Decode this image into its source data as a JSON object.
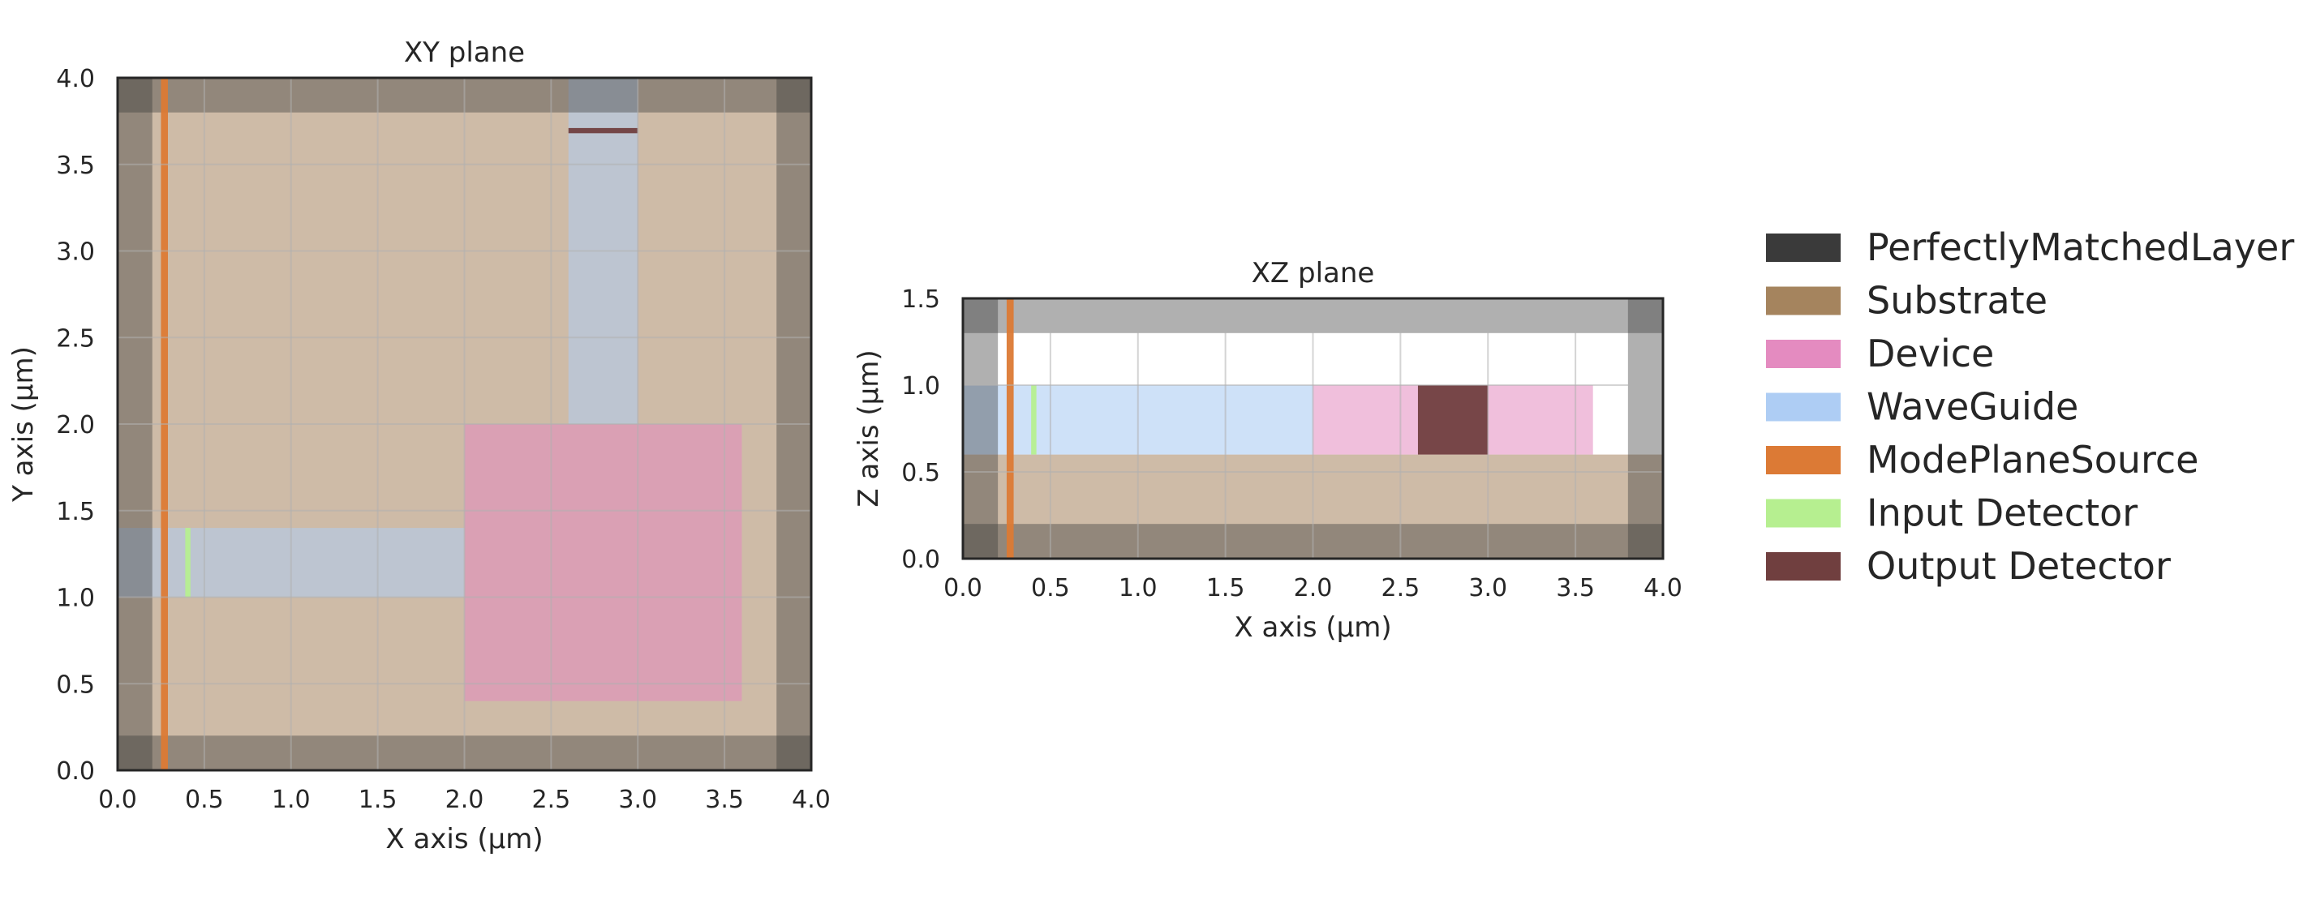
{
  "chart_data": [
    {
      "type": "heatmap",
      "title": "XY plane",
      "xlabel": "X axis (µm)",
      "ylabel": "Y axis (µm)",
      "xlim": [
        0,
        4
      ],
      "ylim": [
        0,
        4
      ],
      "xticks": [
        "0.0",
        "0.5",
        "1.0",
        "1.5",
        "2.0",
        "2.5",
        "3.0",
        "3.5",
        "4.0"
      ],
      "yticks": [
        "0.0",
        "0.5",
        "1.0",
        "1.5",
        "2.0",
        "2.5",
        "3.0",
        "3.5",
        "4.0"
      ],
      "grid": true,
      "regions": [
        {
          "label": "Substrate",
          "x": [
            0,
            4
          ],
          "y": [
            0,
            4
          ]
        },
        {
          "label": "Device",
          "x": [
            2.0,
            3.6
          ],
          "y": [
            0.4,
            2.0
          ]
        },
        {
          "label": "WaveGuide",
          "x": [
            0,
            2.0
          ],
          "y": [
            1.0,
            1.4
          ]
        },
        {
          "label": "WaveGuide",
          "x": [
            2.6,
            3.0
          ],
          "y": [
            2.0,
            4.0
          ]
        },
        {
          "label": "PerfectlyMatchedLayer",
          "x": [
            0,
            0.2
          ],
          "y": [
            0,
            4
          ]
        },
        {
          "label": "PerfectlyMatchedLayer",
          "x": [
            3.8,
            4.0
          ],
          "y": [
            0,
            4
          ]
        },
        {
          "label": "PerfectlyMatchedLayer",
          "x": [
            0,
            4
          ],
          "y": [
            0,
            0.2
          ]
        },
        {
          "label": "PerfectlyMatchedLayer",
          "x": [
            0,
            4
          ],
          "y": [
            3.8,
            4.0
          ]
        },
        {
          "label": "ModePlaneSource",
          "x": [
            0.25,
            0.29
          ],
          "y": [
            0,
            4
          ]
        },
        {
          "label": "Input Detector",
          "x": [
            0.39,
            0.42
          ],
          "y": [
            1.0,
            1.4
          ]
        },
        {
          "label": "Output Detector",
          "x": [
            2.6,
            3.0
          ],
          "y": [
            3.68,
            3.71
          ]
        }
      ]
    },
    {
      "type": "heatmap",
      "title": "XZ plane",
      "xlabel": "X axis (µm)",
      "ylabel": "Z axis (µm)",
      "xlim": [
        0,
        4
      ],
      "ylim": [
        0,
        1.5
      ],
      "xticks": [
        "0.0",
        "0.5",
        "1.0",
        "1.5",
        "2.0",
        "2.5",
        "3.0",
        "3.5",
        "4.0"
      ],
      "yticks": [
        "0.0",
        "0.5",
        "1.0",
        "1.5"
      ],
      "grid": true,
      "regions": [
        {
          "label": "Substrate",
          "x": [
            0,
            4
          ],
          "y": [
            0,
            0.6
          ]
        },
        {
          "label": "WaveGuide",
          "x": [
            0,
            2.0
          ],
          "y": [
            0.6,
            1.0
          ]
        },
        {
          "label": "Device",
          "x": [
            2.0,
            3.6
          ],
          "y": [
            0.6,
            1.0
          ]
        },
        {
          "label": "Output Detector",
          "x": [
            2.6,
            3.0
          ],
          "y": [
            0.6,
            1.0
          ]
        },
        {
          "label": "PerfectlyMatchedLayer",
          "x": [
            0,
            0.2
          ],
          "y": [
            0,
            1.5
          ]
        },
        {
          "label": "PerfectlyMatchedLayer",
          "x": [
            3.8,
            4.0
          ],
          "y": [
            0,
            1.5
          ]
        },
        {
          "label": "PerfectlyMatchedLayer",
          "x": [
            0,
            4
          ],
          "y": [
            0,
            0.2
          ]
        },
        {
          "label": "PerfectlyMatchedLayer",
          "x": [
            0,
            4
          ],
          "y": [
            1.3,
            1.5
          ]
        },
        {
          "label": "ModePlaneSource",
          "x": [
            0.25,
            0.29
          ],
          "y": [
            0,
            1.5
          ]
        },
        {
          "label": "Input Detector",
          "x": [
            0.39,
            0.42
          ],
          "y": [
            0.6,
            1.0
          ]
        }
      ]
    }
  ],
  "legend": {
    "placement": "right",
    "entries": [
      {
        "label": "PerfectlyMatchedLayer",
        "color": "#3a3a3a"
      },
      {
        "label": "Substrate",
        "color": "#a5845e"
      },
      {
        "label": "Device",
        "color": "#e48bc0"
      },
      {
        "label": "WaveGuide",
        "color": "#aecdf4"
      },
      {
        "label": "ModePlaneSource",
        "color": "#dc7a35"
      },
      {
        "label": "Input Detector",
        "color": "#b6ef90"
      },
      {
        "label": "Output Detector",
        "color": "#703f3f"
      }
    ]
  }
}
